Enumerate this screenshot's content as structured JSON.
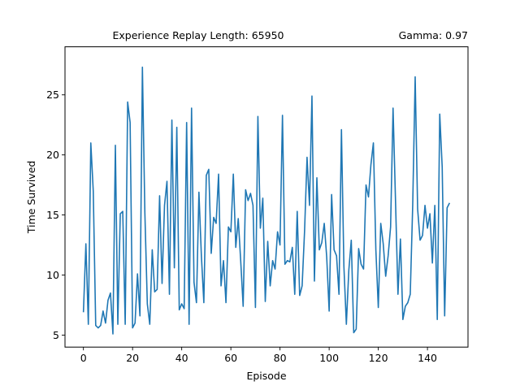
{
  "chart_data": {
    "type": "line",
    "title_left": "Experience Replay Length: 65950",
    "title_right": "Gamma: 0.97",
    "xlabel": "Episode",
    "ylabel": "Time Survived",
    "xlim": [
      -7.5,
      156.5
    ],
    "ylim": [
      4.0,
      29.0
    ],
    "xticks": [
      0,
      20,
      40,
      60,
      80,
      100,
      120,
      140
    ],
    "yticks": [
      5,
      10,
      15,
      20,
      25
    ],
    "grid": false,
    "series": [
      {
        "color": "#1f77b4",
        "x": [
          0,
          1,
          2,
          3,
          4,
          5,
          6,
          7,
          8,
          9,
          10,
          11,
          12,
          13,
          14,
          15,
          16,
          17,
          18,
          19,
          20,
          21,
          22,
          23,
          24,
          25,
          26,
          27,
          28,
          29,
          30,
          31,
          32,
          33,
          34,
          35,
          36,
          37,
          38,
          39,
          40,
          41,
          42,
          43,
          44,
          45,
          46,
          47,
          48,
          49,
          50,
          51,
          52,
          53,
          54,
          55,
          56,
          57,
          58,
          59,
          60,
          61,
          62,
          63,
          64,
          65,
          66,
          67,
          68,
          69,
          70,
          71,
          72,
          73,
          74,
          75,
          76,
          77,
          78,
          79,
          80,
          81,
          82,
          83,
          84,
          85,
          86,
          87,
          88,
          89,
          90,
          91,
          92,
          93,
          94,
          95,
          96,
          97,
          98,
          99,
          100,
          101,
          102,
          103,
          104,
          105,
          106,
          107,
          108,
          109,
          110,
          111,
          112,
          113,
          114,
          115,
          116,
          117,
          118,
          119,
          120,
          121,
          122,
          123,
          124,
          125,
          126,
          127,
          128,
          129,
          130,
          131,
          132,
          133,
          134,
          135,
          136,
          137,
          138,
          139,
          140,
          141,
          142,
          143,
          144,
          145,
          146,
          147,
          148,
          149
        ],
        "y": [
          6.9,
          12.6,
          5.9,
          21.0,
          17.0,
          5.8,
          5.6,
          5.8,
          7.0,
          6.0,
          7.9,
          8.5,
          5.1,
          20.8,
          5.9,
          15.1,
          15.3,
          5.9,
          24.4,
          22.7,
          5.6,
          6.0,
          10.1,
          6.6,
          27.3,
          15.2,
          7.6,
          5.9,
          12.1,
          8.6,
          8.8,
          16.6,
          9.3,
          15.8,
          17.8,
          8.4,
          22.9,
          10.6,
          22.3,
          7.1,
          7.6,
          7.2,
          22.7,
          5.9,
          23.9,
          9.4,
          7.7,
          16.9,
          11.6,
          7.7,
          18.3,
          18.8,
          11.8,
          14.8,
          14.3,
          18.4,
          9.1,
          11.2,
          7.7,
          14.0,
          13.6,
          18.4,
          12.3,
          14.7,
          11.2,
          7.4,
          17.1,
          16.2,
          16.8,
          15.8,
          7.3,
          23.2,
          13.9,
          16.4,
          7.8,
          12.8,
          9.1,
          11.2,
          10.5,
          13.6,
          12.5,
          23.3,
          10.9,
          11.2,
          11.1,
          12.3,
          8.4,
          15.3,
          8.3,
          9.1,
          13.7,
          19.8,
          15.8,
          24.9,
          9.5,
          18.1,
          12.1,
          12.7,
          14.3,
          11.5,
          7.0,
          16.7,
          12.1,
          11.6,
          8.4,
          22.1,
          10.7,
          5.9,
          10.4,
          12.9,
          5.2,
          5.5,
          12.2,
          10.9,
          10.5,
          17.5,
          16.5,
          19.2,
          21.0,
          12.1,
          7.3,
          14.3,
          12.6,
          9.9,
          11.6,
          14.0,
          23.9,
          16.2,
          8.4,
          13.0,
          6.3,
          7.4,
          7.7,
          8.4,
          15.8,
          26.5,
          15.5,
          12.9,
          13.3,
          15.8,
          13.9,
          15.1,
          11.0,
          15.8,
          6.3,
          23.4,
          19.0,
          6.6,
          15.6,
          16.0
        ]
      }
    ]
  }
}
